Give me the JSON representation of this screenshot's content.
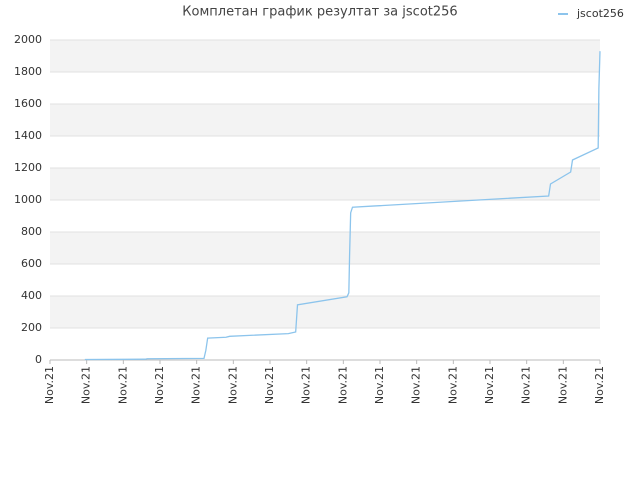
{
  "chart_data": {
    "type": "line",
    "title": "Комплетан график резултат за jscot256",
    "x": [
      0.95,
      2.6,
      2.65,
      4.2,
      4.25,
      4.3,
      4.8,
      4.9,
      6.5,
      6.7,
      6.75,
      8.1,
      8.15,
      8.17,
      8.2,
      8.25,
      8.8,
      13.6,
      13.65,
      14.2,
      14.25,
      14.95,
      14.97,
      15
    ],
    "series": [
      {
        "name": "jscot256",
        "color": "#8cc4ec",
        "values": [
          3,
          5,
          8,
          10,
          60,
          137,
          142,
          148,
          165,
          175,
          345,
          395,
          420,
          650,
          920,
          955,
          962,
          1025,
          1100,
          1175,
          1250,
          1325,
          1700,
          1930
        ]
      }
    ],
    "xlim": [
      0,
      15
    ],
    "xticks": [
      {
        "value": 0,
        "label": "Nov.21"
      },
      {
        "value": 1,
        "label": "Nov.21"
      },
      {
        "value": 2,
        "label": "Nov.21"
      },
      {
        "value": 3,
        "label": "Nov.21"
      },
      {
        "value": 4,
        "label": "Nov.21"
      },
      {
        "value": 5,
        "label": "Nov.21"
      },
      {
        "value": 6,
        "label": "Nov.21"
      },
      {
        "value": 7,
        "label": "Nov.21"
      },
      {
        "value": 8,
        "label": "Nov.21"
      },
      {
        "value": 9,
        "label": "Nov.21"
      },
      {
        "value": 10,
        "label": "Nov.21"
      },
      {
        "value": 11,
        "label": "Nov.21"
      },
      {
        "value": 12,
        "label": "Nov.21"
      },
      {
        "value": 13,
        "label": "Nov.21"
      },
      {
        "value": 14,
        "label": "Nov.21"
      },
      {
        "value": 15,
        "label": "Nov.21"
      }
    ],
    "ylim": [
      0,
      2000
    ],
    "yticks": [
      0,
      200,
      400,
      600,
      800,
      1000,
      1200,
      1400,
      1600,
      1800,
      2000
    ],
    "grid": true,
    "legend": "top-right"
  }
}
